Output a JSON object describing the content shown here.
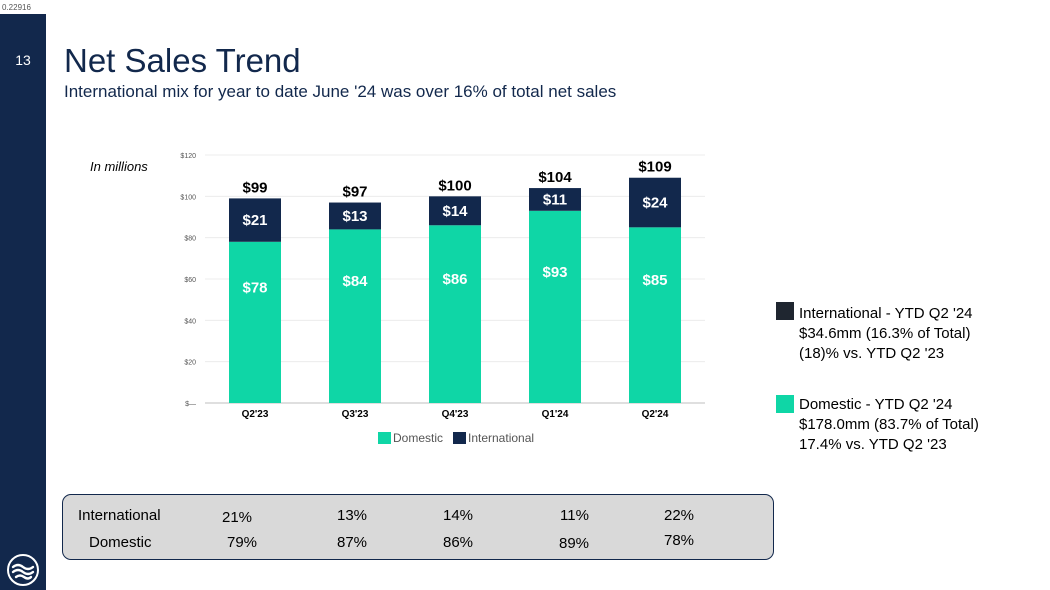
{
  "doc_id": "0.22916",
  "page_number": "13",
  "title": "Net Sales Trend",
  "subtitle": "International mix for year to date June '24 was over 16% of total net sales",
  "units_note": "In millions",
  "colors": {
    "domestic": "#0fd6a6",
    "international": "#12284c",
    "sidebar": "#12284c",
    "legend_international_box": "#1f2630"
  },
  "chart_data": {
    "type": "bar",
    "stacked": true,
    "categories": [
      "Q2'23",
      "Q3'23",
      "Q4'23",
      "Q1'24",
      "Q2'24"
    ],
    "series": [
      {
        "name": "Domestic",
        "values": [
          78,
          84,
          86,
          93,
          85
        ],
        "labels": [
          "$78",
          "$84",
          "$86",
          "$93",
          "$85"
        ]
      },
      {
        "name": "International",
        "values": [
          21,
          13,
          14,
          11,
          24
        ],
        "labels": [
          "$21",
          "$13",
          "$14",
          "$11",
          "$24"
        ]
      }
    ],
    "totals": [
      99,
      97,
      100,
      104,
      109
    ],
    "total_labels": [
      "$99",
      "$97",
      "$100",
      "$104",
      "$109"
    ],
    "ylim": [
      0,
      120
    ],
    "yticks": [
      0,
      20,
      40,
      60,
      80,
      100,
      120
    ],
    "ytick_labels": [
      "$—",
      "$20",
      "$40",
      "$60",
      "$80",
      "$100",
      "$120"
    ],
    "grid": true,
    "legend": [
      "Domestic",
      "International"
    ],
    "legend_position": "bottom"
  },
  "side_legend": {
    "international": {
      "line1": "International - YTD Q2 '24",
      "line2": "$34.6mm (16.3% of Total)",
      "line3": "(18)% vs. YTD Q2 '23"
    },
    "domestic": {
      "line1": "Domestic - YTD Q2 '24",
      "line2": "$178.0mm (83.7% of Total)",
      "line3": "17.4% vs. YTD Q2 '23"
    }
  },
  "mix_table": {
    "international_label": "International",
    "domestic_label": "Domestic",
    "international": [
      "21%",
      "13%",
      "14%",
      "11%",
      "22%"
    ],
    "domestic": [
      "79%",
      "87%",
      "86%",
      "89%",
      "78%"
    ]
  }
}
